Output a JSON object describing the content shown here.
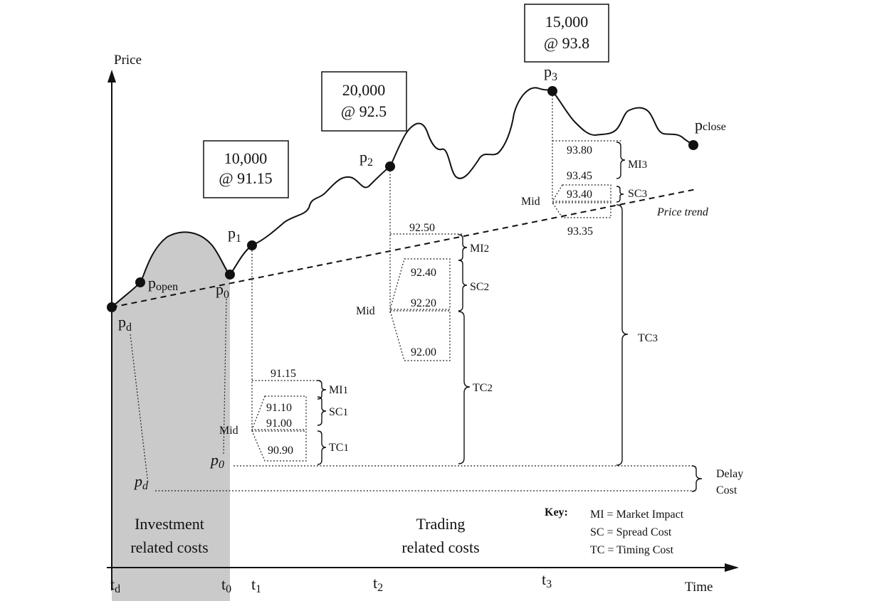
{
  "axes": {
    "y_label": "Price",
    "x_label": "Time",
    "ticks": [
      {
        "main": "t",
        "sub": "d"
      },
      {
        "main": "t",
        "sub": "0"
      },
      {
        "main": "t",
        "sub": "1"
      },
      {
        "main": "t",
        "sub": "2"
      },
      {
        "main": "t",
        "sub": "3"
      }
    ]
  },
  "points": {
    "pd": {
      "main": "p",
      "sub": "d"
    },
    "popen": {
      "main": "p",
      "sub": "open"
    },
    "p0": {
      "main": "p",
      "sub": "0"
    },
    "p1": {
      "main": "p",
      "sub": "1"
    },
    "p2": {
      "main": "p",
      "sub": "2"
    },
    "p3": {
      "main": "p",
      "sub": "3"
    },
    "pclose": {
      "main": "p",
      "sub": "close"
    }
  },
  "trades": [
    {
      "qty": "10,000",
      "price": "@ 91.15"
    },
    {
      "qty": "20,000",
      "price": "@ 92.5"
    },
    {
      "qty": "15,000",
      "price": "@ 93.8"
    }
  ],
  "trend_label": "Price trend",
  "levels": {
    "t1": {
      "exec": "91.15",
      "ask": "91.10",
      "bid": "91.00",
      "low": "90.90"
    },
    "t2": {
      "exec": "92.50",
      "ask": "92.40",
      "bid": "92.20",
      "low": "92.00"
    },
    "t3": {
      "exec": "93.80",
      "ask": "93.45",
      "bid": "93.40",
      "low": "93.35"
    }
  },
  "mid_label": "Mid",
  "cost_labels": {
    "mi1": {
      "main": "MI",
      "sub": "1"
    },
    "sc1": {
      "main": "SC",
      "sub": "1"
    },
    "tc1": {
      "main": "TC",
      "sub": "1"
    },
    "mi2": {
      "main": "MI",
      "sub": "2"
    },
    "sc2": {
      "main": "SC",
      "sub": "2"
    },
    "tc2": {
      "main": "TC",
      "sub": "2"
    },
    "mi3": {
      "main": "MI",
      "sub": "3"
    },
    "sc3": {
      "main": "SC",
      "sub": "3"
    },
    "tc3": {
      "main": "TC",
      "sub": "3"
    }
  },
  "reference_labels": {
    "p0": {
      "main": "p",
      "sub": "0"
    },
    "pd": {
      "main": "p",
      "sub": "d"
    }
  },
  "delay_cost": {
    "line1": "Delay",
    "line2": "Cost"
  },
  "regions": {
    "investment": {
      "line1": "Investment",
      "line2": "related costs"
    },
    "trading": {
      "line1": "Trading",
      "line2": "related costs"
    }
  },
  "key": {
    "title": "Key:",
    "items": [
      "MI = Market Impact",
      "SC = Spread Cost",
      "TC = Timing Cost"
    ]
  },
  "colors": {
    "shade": "#c9c9c9",
    "ink": "#111111"
  }
}
